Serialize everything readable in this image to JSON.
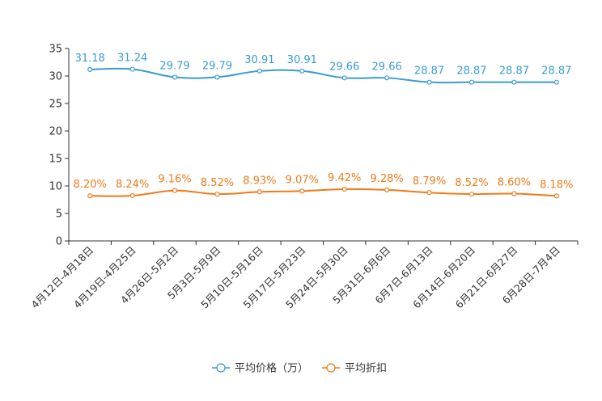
{
  "chart_data": {
    "type": "line",
    "categories": [
      "4月12日-4月18日",
      "4月19日-4月25日",
      "4月26日-5月2日",
      "5月3日-5月9日",
      "5月10日-5月16日",
      "5月17日-5月23日",
      "5月24日-5月30日",
      "5月31日-6月6日",
      "6月7日-6月13日",
      "6月14日-6月20日",
      "6月21日-6月27日",
      "6月28日-7月4日"
    ],
    "series": [
      {
        "name": "平均价格（万）",
        "color": "#3a9bd2",
        "values": [
          31.18,
          31.24,
          29.79,
          29.79,
          30.91,
          30.91,
          29.66,
          29.66,
          28.87,
          28.87,
          28.87,
          28.87
        ],
        "labels": [
          "31.18",
          "31.24",
          "29.79",
          "29.79",
          "30.91",
          "30.91",
          "29.66",
          "29.66",
          "28.87",
          "28.87",
          "28.87",
          "28.87"
        ]
      },
      {
        "name": "平均折扣",
        "color": "#f07a17",
        "values": [
          8.2,
          8.24,
          9.16,
          8.52,
          8.93,
          9.07,
          9.42,
          9.28,
          8.79,
          8.52,
          8.6,
          8.18
        ],
        "labels": [
          "8.20%",
          "8.24%",
          "9.16%",
          "8.52%",
          "8.93%",
          "9.07%",
          "9.42%",
          "9.28%",
          "8.79%",
          "8.52%",
          "8.60%",
          "8.18%"
        ]
      }
    ],
    "yticks": [
      0,
      5,
      10,
      15,
      20,
      25,
      30,
      35
    ],
    "ylim": [
      0,
      35
    ],
    "title": "",
    "xlabel": "",
    "ylabel": "",
    "legend_position": "bottom"
  }
}
